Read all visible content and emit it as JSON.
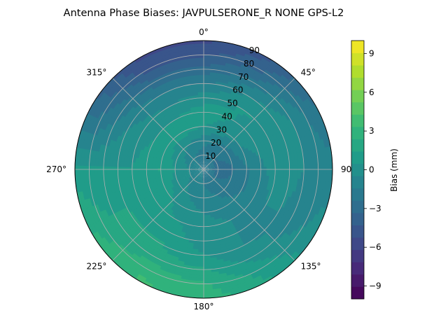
{
  "chart_data": {
    "type": "heatmap",
    "projection": "polar",
    "title": "Antenna Phase Biases: JAVPULSERONE_R  NONE GPS-L2",
    "angular_axis": {
      "zero_location": "top",
      "direction": "clockwise",
      "ticks": [
        0,
        45,
        90,
        135,
        180,
        225,
        270,
        315
      ],
      "tick_labels": [
        "0°",
        "45°",
        "90°",
        "135°",
        "180°",
        "225°",
        "270°",
        "315°"
      ]
    },
    "radial_axis": {
      "range": [
        0,
        90
      ],
      "ticks": [
        10,
        20,
        30,
        40,
        50,
        60,
        70,
        80,
        90
      ],
      "tick_labels": [
        "10",
        "20",
        "30",
        "40",
        "50",
        "60",
        "70",
        "80",
        "90"
      ]
    },
    "grid": true,
    "colormap": "viridis",
    "colorbar": {
      "label": "Bias (mm)",
      "range": [
        -10,
        10
      ],
      "levels": 21,
      "ticks": [
        -9,
        -6,
        -3,
        0,
        3,
        6,
        9
      ],
      "tick_labels": [
        "−9",
        "−6",
        "−3",
        "0",
        "3",
        "6",
        "9"
      ]
    },
    "azimuth_samples_deg": [
      0,
      30,
      60,
      90,
      120,
      150,
      180,
      210,
      240,
      270,
      300,
      330
    ],
    "zenith_samples_deg": [
      0,
      10,
      20,
      30,
      40,
      50,
      60,
      70,
      80,
      90
    ],
    "bias_mm": [
      [
        -1.5,
        -1.5,
        -1.5,
        -1.5,
        -1.5,
        -1.5,
        -1.5,
        -1.5,
        -1.5,
        -1.5,
        -1.5,
        -1.5
      ],
      [
        -2.0,
        -2.2,
        -2.5,
        -2.8,
        -2.5,
        -2.0,
        -1.5,
        -1.0,
        -0.5,
        -0.5,
        -1.0,
        -1.5
      ],
      [
        -1.0,
        -1.5,
        -2.0,
        -2.5,
        -2.2,
        -1.5,
        -1.0,
        -0.5,
        0.0,
        0.5,
        0.0,
        -0.5
      ],
      [
        0.5,
        0.0,
        -0.5,
        -1.5,
        -1.5,
        -1.0,
        -0.5,
        0.0,
        1.0,
        1.5,
        1.0,
        1.0
      ],
      [
        1.0,
        0.5,
        0.0,
        -0.8,
        -1.0,
        -0.5,
        0.0,
        0.5,
        1.0,
        1.0,
        0.5,
        0.5
      ],
      [
        0.0,
        0.5,
        0.5,
        0.0,
        -0.5,
        -0.5,
        0.0,
        1.0,
        1.0,
        0.5,
        0.0,
        -0.5
      ],
      [
        -1.5,
        -0.5,
        0.0,
        0.0,
        -0.5,
        -0.5,
        0.5,
        1.5,
        1.5,
        0.5,
        -0.5,
        -1.5
      ],
      [
        -3.0,
        -2.0,
        -0.5,
        -0.5,
        -1.0,
        0.0,
        1.5,
        2.0,
        1.5,
        0.5,
        -1.5,
        -3.0
      ],
      [
        -4.5,
        -3.5,
        -1.5,
        -1.0,
        -0.5,
        1.0,
        2.5,
        3.0,
        2.0,
        0.5,
        -2.5,
        -4.5
      ],
      [
        -5.5,
        -4.5,
        -2.5,
        -1.0,
        0.0,
        1.5,
        3.0,
        3.5,
        2.5,
        1.0,
        -3.0,
        -5.5
      ]
    ]
  }
}
